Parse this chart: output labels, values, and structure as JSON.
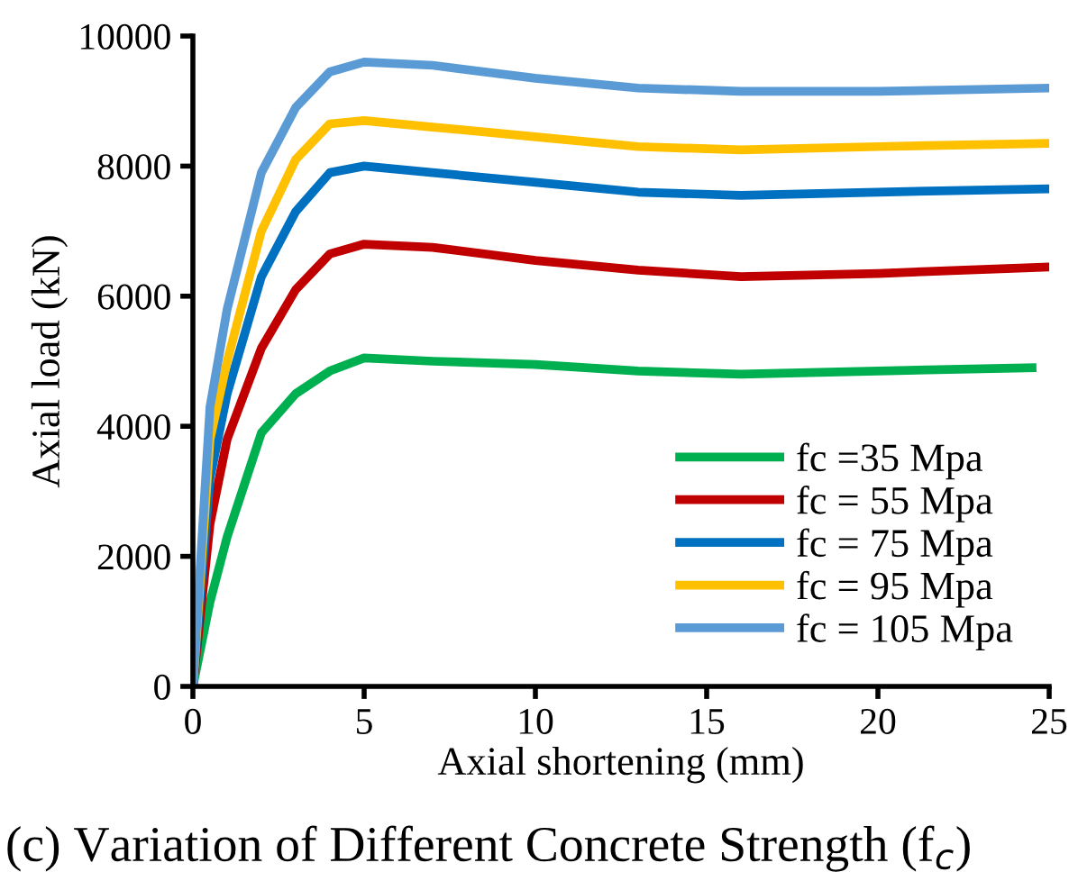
{
  "chart_data": {
    "type": "line",
    "xlabel": "Axial shortening (mm)",
    "ylabel": "Axial load (kN)",
    "xlim": [
      0,
      25
    ],
    "xticks": [
      0,
      5,
      10,
      15,
      20,
      25
    ],
    "ylim": [
      0,
      10000
    ],
    "yticks": [
      0,
      2000,
      4000,
      6000,
      8000,
      10000
    ],
    "grid": false,
    "legend": "bottom right",
    "marker": "none",
    "line_style": "solid",
    "annotations": [
      "(c) Variation of Different Concrete Strength (f$_{c}$)"
    ],
    "series": [
      {
        "name": "fc =35 Mpa",
        "color": "#00b050",
        "x": [
          0,
          0.5,
          1,
          2,
          3,
          4,
          5,
          7,
          10,
          13,
          16,
          20,
          24.5
        ],
        "values": [
          0,
          1300,
          2300,
          3900,
          4500,
          4850,
          5050,
          5000,
          4950,
          4850,
          4800,
          4850,
          4900
        ]
      },
      {
        "name": "fc = 55 Mpa",
        "color": "#c00000",
        "x": [
          0,
          0.5,
          1,
          2,
          3,
          4,
          5,
          7,
          10,
          13,
          16,
          20,
          25
        ],
        "values": [
          0,
          2500,
          3800,
          5200,
          6100,
          6650,
          6800,
          6750,
          6550,
          6400,
          6300,
          6350,
          6450
        ]
      },
      {
        "name": "fc = 75 Mpa",
        "color": "#0070c0",
        "x": [
          0,
          0.5,
          1,
          2,
          3,
          4,
          5,
          7,
          10,
          13,
          16,
          20,
          25
        ],
        "values": [
          0,
          3200,
          4500,
          6300,
          7300,
          7900,
          8000,
          7900,
          7750,
          7600,
          7550,
          7600,
          7650
        ]
      },
      {
        "name": "fc = 95 Mpa",
        "color": "#ffc000",
        "x": [
          0,
          0.5,
          1,
          2,
          3,
          4,
          5,
          7,
          10,
          13,
          16,
          20,
          25
        ],
        "values": [
          0,
          3800,
          5000,
          7000,
          8100,
          8650,
          8700,
          8600,
          8450,
          8300,
          8250,
          8300,
          8350
        ]
      },
      {
        "name": "fc = 105 Mpa",
        "color": "#5b9bd5",
        "x": [
          0,
          0.5,
          1,
          2,
          3,
          4,
          5,
          7,
          10,
          13,
          16,
          20,
          25
        ],
        "values": [
          0,
          4300,
          5800,
          7900,
          8900,
          9450,
          9600,
          9550,
          9350,
          9200,
          9150,
          9150,
          9200
        ]
      }
    ]
  }
}
